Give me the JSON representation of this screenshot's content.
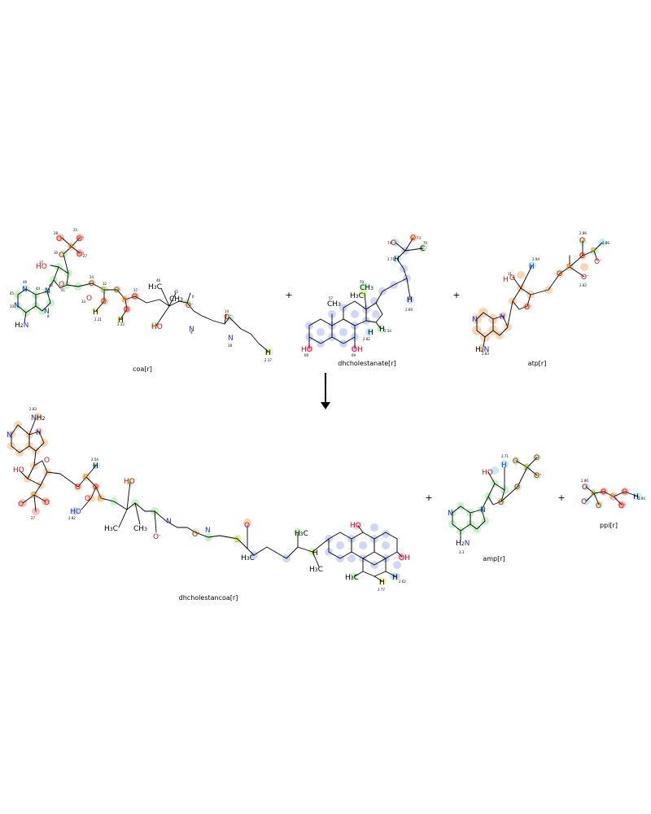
{
  "reaction": {
    "reactants": [
      {
        "key": "coa",
        "label": "coa[r]"
      },
      {
        "key": "dhchol",
        "label": "dhcholestanate[r]"
      },
      {
        "key": "atp",
        "label": "atp[r]"
      }
    ],
    "products": [
      {
        "key": "dhcoa",
        "label": "dhcholestancoa[r]"
      },
      {
        "key": "amp",
        "label": "amp[r]"
      },
      {
        "key": "ppi",
        "label": "ppi[r]"
      }
    ],
    "plus_sign": "+"
  },
  "colors": {
    "green": "#9be89b",
    "orange": "#f7b985",
    "blue": "#aab4f2",
    "red": "#f59a8a",
    "cyan": "#9fe0ee",
    "yellow": "#eef07a",
    "atom_N": "#2233dd",
    "atom_O": "#dd1111",
    "atom_P": "#e09000",
    "atom_S": "#b8a000"
  }
}
